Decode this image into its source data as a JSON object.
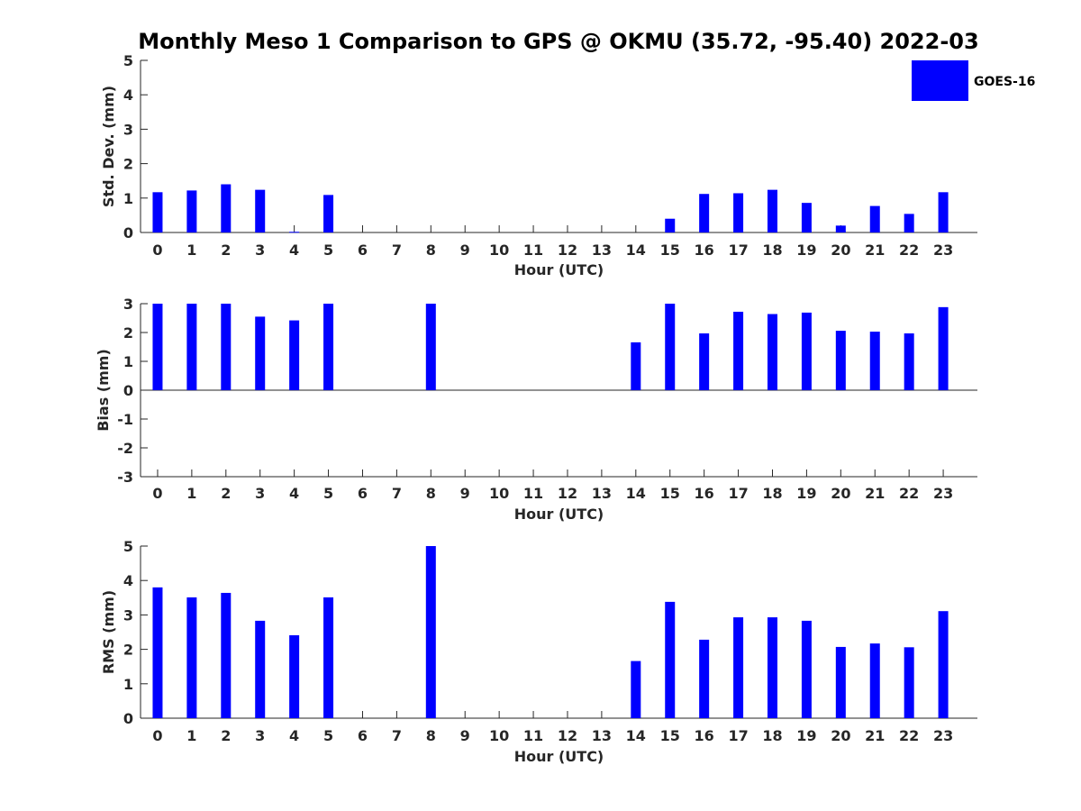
{
  "title": "Monthly Meso 1 Comparison to GPS @ OKMU (35.72, -95.40) 2022-03",
  "legend": {
    "label": "GOES-16",
    "color": "#0000ff",
    "placement": "top-right"
  },
  "chart_data": [
    {
      "type": "bar",
      "ylabel": "Std. Dev. (mm)",
      "xlabel": "Hour (UTC)",
      "x": [
        0,
        1,
        2,
        3,
        4,
        5,
        6,
        7,
        8,
        9,
        10,
        11,
        12,
        13,
        14,
        15,
        16,
        17,
        18,
        19,
        20,
        21,
        22,
        23
      ],
      "ylim": [
        0,
        5
      ],
      "yticks": [
        0,
        1,
        2,
        3,
        4,
        5
      ],
      "series": [
        {
          "name": "GOES-16",
          "color": "#0000ff",
          "values": [
            1.17,
            1.22,
            1.4,
            1.24,
            0.02,
            1.09,
            null,
            null,
            null,
            null,
            null,
            null,
            null,
            null,
            null,
            0.4,
            1.12,
            1.14,
            1.24,
            0.86,
            0.2,
            0.77,
            0.54,
            1.17
          ]
        }
      ]
    },
    {
      "type": "bar",
      "ylabel": "Bias (mm)",
      "xlabel": "Hour (UTC)",
      "x": [
        0,
        1,
        2,
        3,
        4,
        5,
        6,
        7,
        8,
        9,
        10,
        11,
        12,
        13,
        14,
        15,
        16,
        17,
        18,
        19,
        20,
        21,
        22,
        23
      ],
      "ylim": [
        -3,
        3
      ],
      "yticks": [
        -3,
        -2,
        -1,
        0,
        1,
        2,
        3
      ],
      "series": [
        {
          "name": "GOES-16",
          "color": "#0000ff",
          "values": [
            3.0,
            3.0,
            3.0,
            2.55,
            2.42,
            3.0,
            null,
            null,
            3.0,
            null,
            null,
            null,
            null,
            null,
            1.66,
            3.0,
            1.97,
            2.72,
            2.64,
            2.69,
            2.06,
            2.03,
            1.97,
            2.88
          ]
        }
      ]
    },
    {
      "type": "bar",
      "ylabel": "RMS (mm)",
      "xlabel": "Hour (UTC)",
      "x": [
        0,
        1,
        2,
        3,
        4,
        5,
        6,
        7,
        8,
        9,
        10,
        11,
        12,
        13,
        14,
        15,
        16,
        17,
        18,
        19,
        20,
        21,
        22,
        23
      ],
      "ylim": [
        0,
        5
      ],
      "yticks": [
        0,
        1,
        2,
        3,
        4,
        5
      ],
      "series": [
        {
          "name": "GOES-16",
          "color": "#0000ff",
          "values": [
            3.8,
            3.51,
            3.64,
            2.83,
            2.41,
            3.51,
            null,
            null,
            5.0,
            null,
            null,
            null,
            null,
            null,
            1.66,
            3.38,
            2.28,
            2.93,
            2.93,
            2.83,
            2.07,
            2.17,
            2.06,
            3.11
          ]
        }
      ]
    }
  ]
}
